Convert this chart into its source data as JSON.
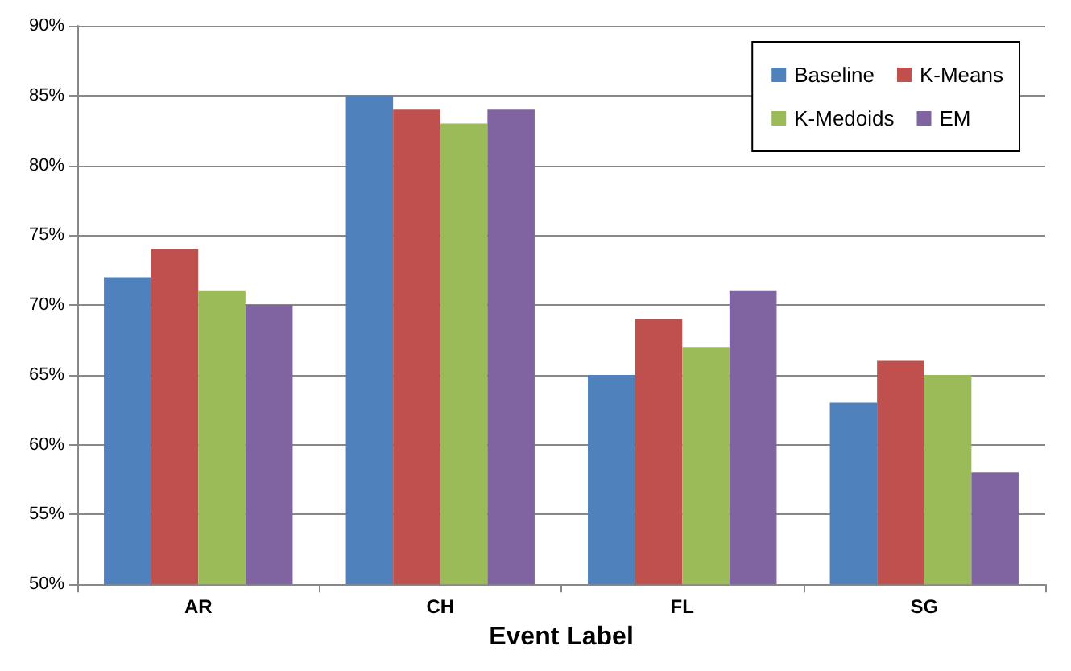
{
  "chart_data": {
    "type": "bar",
    "xlabel": "Event Label",
    "categories": [
      "AR",
      "CH",
      "FL",
      "SG"
    ],
    "series": [
      {
        "name": "Baseline",
        "color": "#4f81bd",
        "values": [
          72,
          85,
          65,
          63
        ]
      },
      {
        "name": "K-Means",
        "color": "#c0504d",
        "values": [
          74,
          84,
          69,
          66
        ]
      },
      {
        "name": "K-Medoids",
        "color": "#9bbb59",
        "values": [
          71,
          83,
          67,
          65
        ]
      },
      {
        "name": "EM",
        "color": "#8064a2",
        "values": [
          70,
          84,
          71,
          58
        ]
      }
    ],
    "ylim": [
      50,
      90
    ],
    "yticks": [
      {
        "value": 50,
        "label": "50%"
      },
      {
        "value": 55,
        "label": "55%"
      },
      {
        "value": 60,
        "label": "60%"
      },
      {
        "value": 65,
        "label": "65%"
      },
      {
        "value": 70,
        "label": "70%"
      },
      {
        "value": 75,
        "label": "75%"
      },
      {
        "value": 80,
        "label": "80%"
      },
      {
        "value": 85,
        "label": "85%"
      },
      {
        "value": 90,
        "label": "90%"
      }
    ],
    "grid": "y",
    "legend": "top right"
  }
}
